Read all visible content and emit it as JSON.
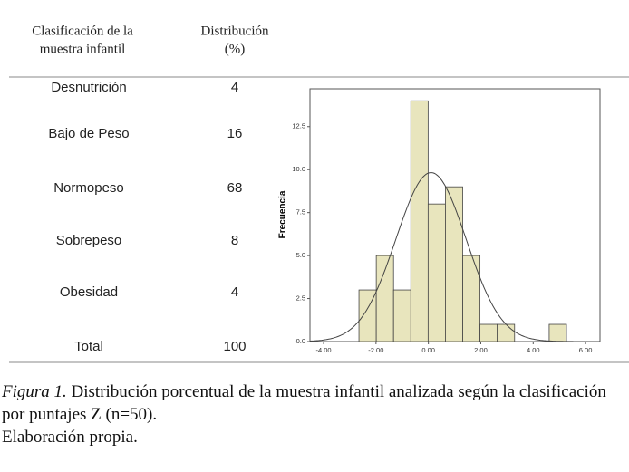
{
  "table": {
    "header": [
      [
        "Clasificación de la",
        "muestra infantil"
      ],
      [
        "Distribución",
        "(%)"
      ]
    ],
    "rows": [
      [
        "Desnutrición",
        4
      ],
      [
        "Bajo de Peso",
        16
      ],
      [
        "Normopeso",
        68
      ],
      [
        "Sobrepeso",
        8
      ],
      [
        "Obesidad",
        4
      ],
      [
        "Total",
        100
      ]
    ]
  },
  "chart_data": {
    "type": "histogram",
    "ylabel": "Frecuencia",
    "bins": [
      -2.65,
      -1.99,
      -1.33,
      -0.67,
      -0.01,
      0.65,
      1.31,
      1.97,
      2.63,
      3.29,
      3.95,
      4.61,
      5.27
    ],
    "counts": [
      3,
      5,
      3,
      14,
      8,
      9,
      5,
      1,
      1,
      0,
      0,
      1
    ],
    "color": "#e8e5bd",
    "normal_curve": {
      "mean": 0.1,
      "sd": 1.34
    },
    "xlim": [
      -4.52,
      6.55
    ],
    "ylim": [
      0,
      14.7
    ],
    "xticks": [
      {
        "value": -4,
        "label": "-4.00"
      },
      {
        "value": -2,
        "label": "-2.00"
      },
      {
        "value": 0,
        "label": "0.00"
      },
      {
        "value": 2,
        "label": "2.00"
      },
      {
        "value": 4,
        "label": "4.00"
      },
      {
        "value": 6,
        "label": "6.00"
      }
    ],
    "yticks": [
      {
        "value": 0,
        "label": "0.0"
      },
      {
        "value": 2.5,
        "label": "2.5"
      },
      {
        "value": 5,
        "label": "5.0"
      },
      {
        "value": 7.5,
        "label": "7.5"
      },
      {
        "value": 10,
        "label": "10.0"
      },
      {
        "value": 12.5,
        "label": "12.5"
      }
    ]
  },
  "caption": {
    "label": "Figura 1.",
    "text": " Distribución porcentual de la muestra infantil analizada según la clasificación por puntajes Z (n=50).",
    "note": "Elaboración propia."
  }
}
